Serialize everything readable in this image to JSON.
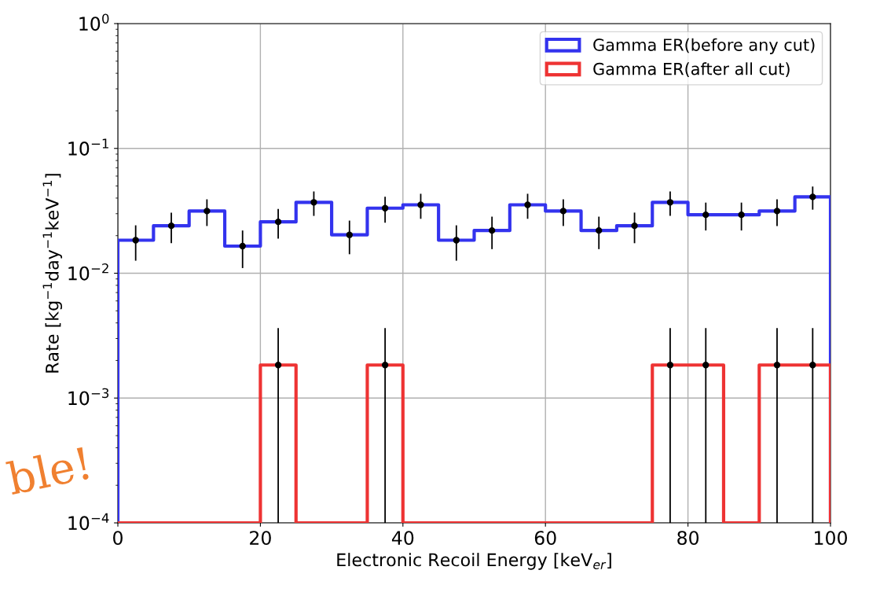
{
  "chart_data": {
    "type": "histogram",
    "xlabel": "Electronic Recoil Energy [keV$_{er}$]",
    "ylabel": "Rate [kg$^{−1}$day$^{−1}$keV$^{−1}$]",
    "bins": [
      0,
      5,
      10,
      15,
      20,
      25,
      30,
      35,
      40,
      45,
      50,
      55,
      60,
      65,
      70,
      75,
      80,
      85,
      90,
      95,
      100
    ],
    "series": [
      {
        "name": "Gamma ER(before any cut)",
        "color": "#3333ee",
        "values": [
          0.0184,
          0.024,
          0.0315,
          0.0165,
          0.0258,
          0.037,
          0.0203,
          0.0332,
          0.0353,
          0.0184,
          0.022,
          0.0353,
          0.0315,
          0.022,
          0.024,
          0.037,
          0.0294,
          0.0294,
          0.0315,
          0.0409
        ]
      },
      {
        "name": "Gamma ER(after all cut)",
        "color": "#ee3333",
        "values": [
          null,
          null,
          null,
          null,
          0.00184,
          null,
          null,
          0.00184,
          null,
          null,
          null,
          null,
          null,
          null,
          null,
          0.00184,
          0.00184,
          null,
          0.00184,
          0.00184
        ]
      },
      {
        "type": "scatter",
        "color": "#000000",
        "x": [
          2.5,
          7.5,
          12.5,
          17.5,
          22.5,
          27.5,
          32.5,
          37.5,
          42.5,
          47.5,
          52.5,
          57.5,
          62.5,
          67.5,
          72.5,
          77.5,
          82.5,
          87.5,
          92.5,
          97.5
        ],
        "values": [
          0.0184,
          0.024,
          0.0315,
          0.0165,
          0.0258,
          0.037,
          0.0203,
          0.0332,
          0.0353,
          0.0184,
          0.022,
          0.0353,
          0.0315,
          0.022,
          0.024,
          0.037,
          0.0294,
          0.0294,
          0.0315,
          0.0409
        ],
        "errors": [
          0.0058,
          0.0066,
          0.0076,
          0.0055,
          0.0069,
          0.0082,
          0.0061,
          0.0078,
          0.008,
          0.0058,
          0.0064,
          0.008,
          0.0076,
          0.0064,
          0.0066,
          0.0082,
          0.0074,
          0.0074,
          0.0076,
          0.0086
        ]
      },
      {
        "type": "scatter",
        "color": "#000000",
        "x": [
          22.5,
          37.5,
          77.5,
          82.5,
          92.5,
          97.5
        ],
        "values": [
          0.00184,
          0.00184,
          0.00184,
          0.00184,
          0.00184,
          0.00184
        ],
        "errors": [
          0.0018,
          0.0018,
          0.0018,
          0.0018,
          0.0018,
          0.0018
        ]
      }
    ],
    "marker": "circle",
    "log": "y",
    "xlim": [
      0,
      100
    ],
    "xticks": [
      0,
      20,
      40,
      60,
      80,
      100
    ],
    "ylim": [
      0.0001,
      1
    ],
    "yticks": [
      {
        "value": 0.0001,
        "label": "10$^{−4}$"
      },
      {
        "value": 0.001,
        "label": "10$^{−3}$"
      },
      {
        "value": 0.01,
        "label": "10$^{−2}$"
      },
      {
        "value": 0.1,
        "label": "10$^{−1}$"
      },
      {
        "value": 1,
        "label": "10$^{0}$"
      }
    ],
    "grid": true,
    "legend": "top right",
    "annotations": [
      "ble!"
    ]
  }
}
